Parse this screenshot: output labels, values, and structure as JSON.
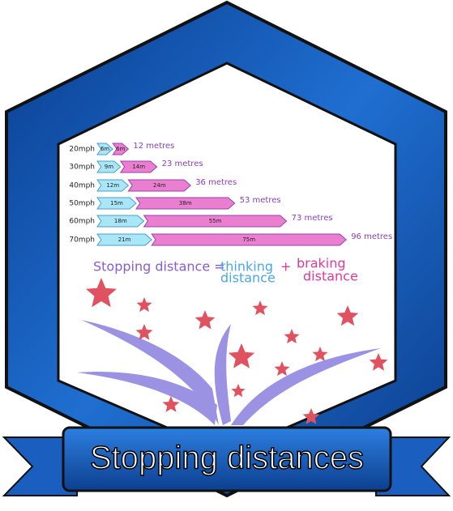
{
  "chart_data": {
    "type": "bar",
    "orientation": "horizontal",
    "stacked": true,
    "categories": [
      "20mph",
      "30mph",
      "40mph",
      "50mph",
      "60mph",
      "70mph"
    ],
    "series": [
      {
        "color": "#a9e6f7",
        "values": [
          6,
          9,
          12,
          15,
          18,
          21
        ],
        "value_labels": [
          "6m",
          "9m",
          "12m",
          "15m",
          "18m",
          "21m"
        ]
      },
      {
        "color": "#ea7fcf",
        "values": [
          6,
          14,
          24,
          38,
          55,
          75
        ],
        "value_labels": [
          "6m",
          "14m",
          "24m",
          "38m",
          "55m",
          "75m"
        ]
      }
    ],
    "totals": [
      12,
      23,
      36,
      53,
      73,
      96
    ],
    "total_labels": [
      "12 metres",
      "23 metres",
      "36 metres",
      "53 metres",
      "73 metres",
      "96 metres"
    ]
  },
  "formula": {
    "left": "Stopping distance =",
    "thinking": [
      "thinking",
      "distance"
    ],
    "plus": "+",
    "braking": [
      "braking",
      "distance"
    ]
  },
  "banner": {
    "title": "Stopping distances"
  }
}
